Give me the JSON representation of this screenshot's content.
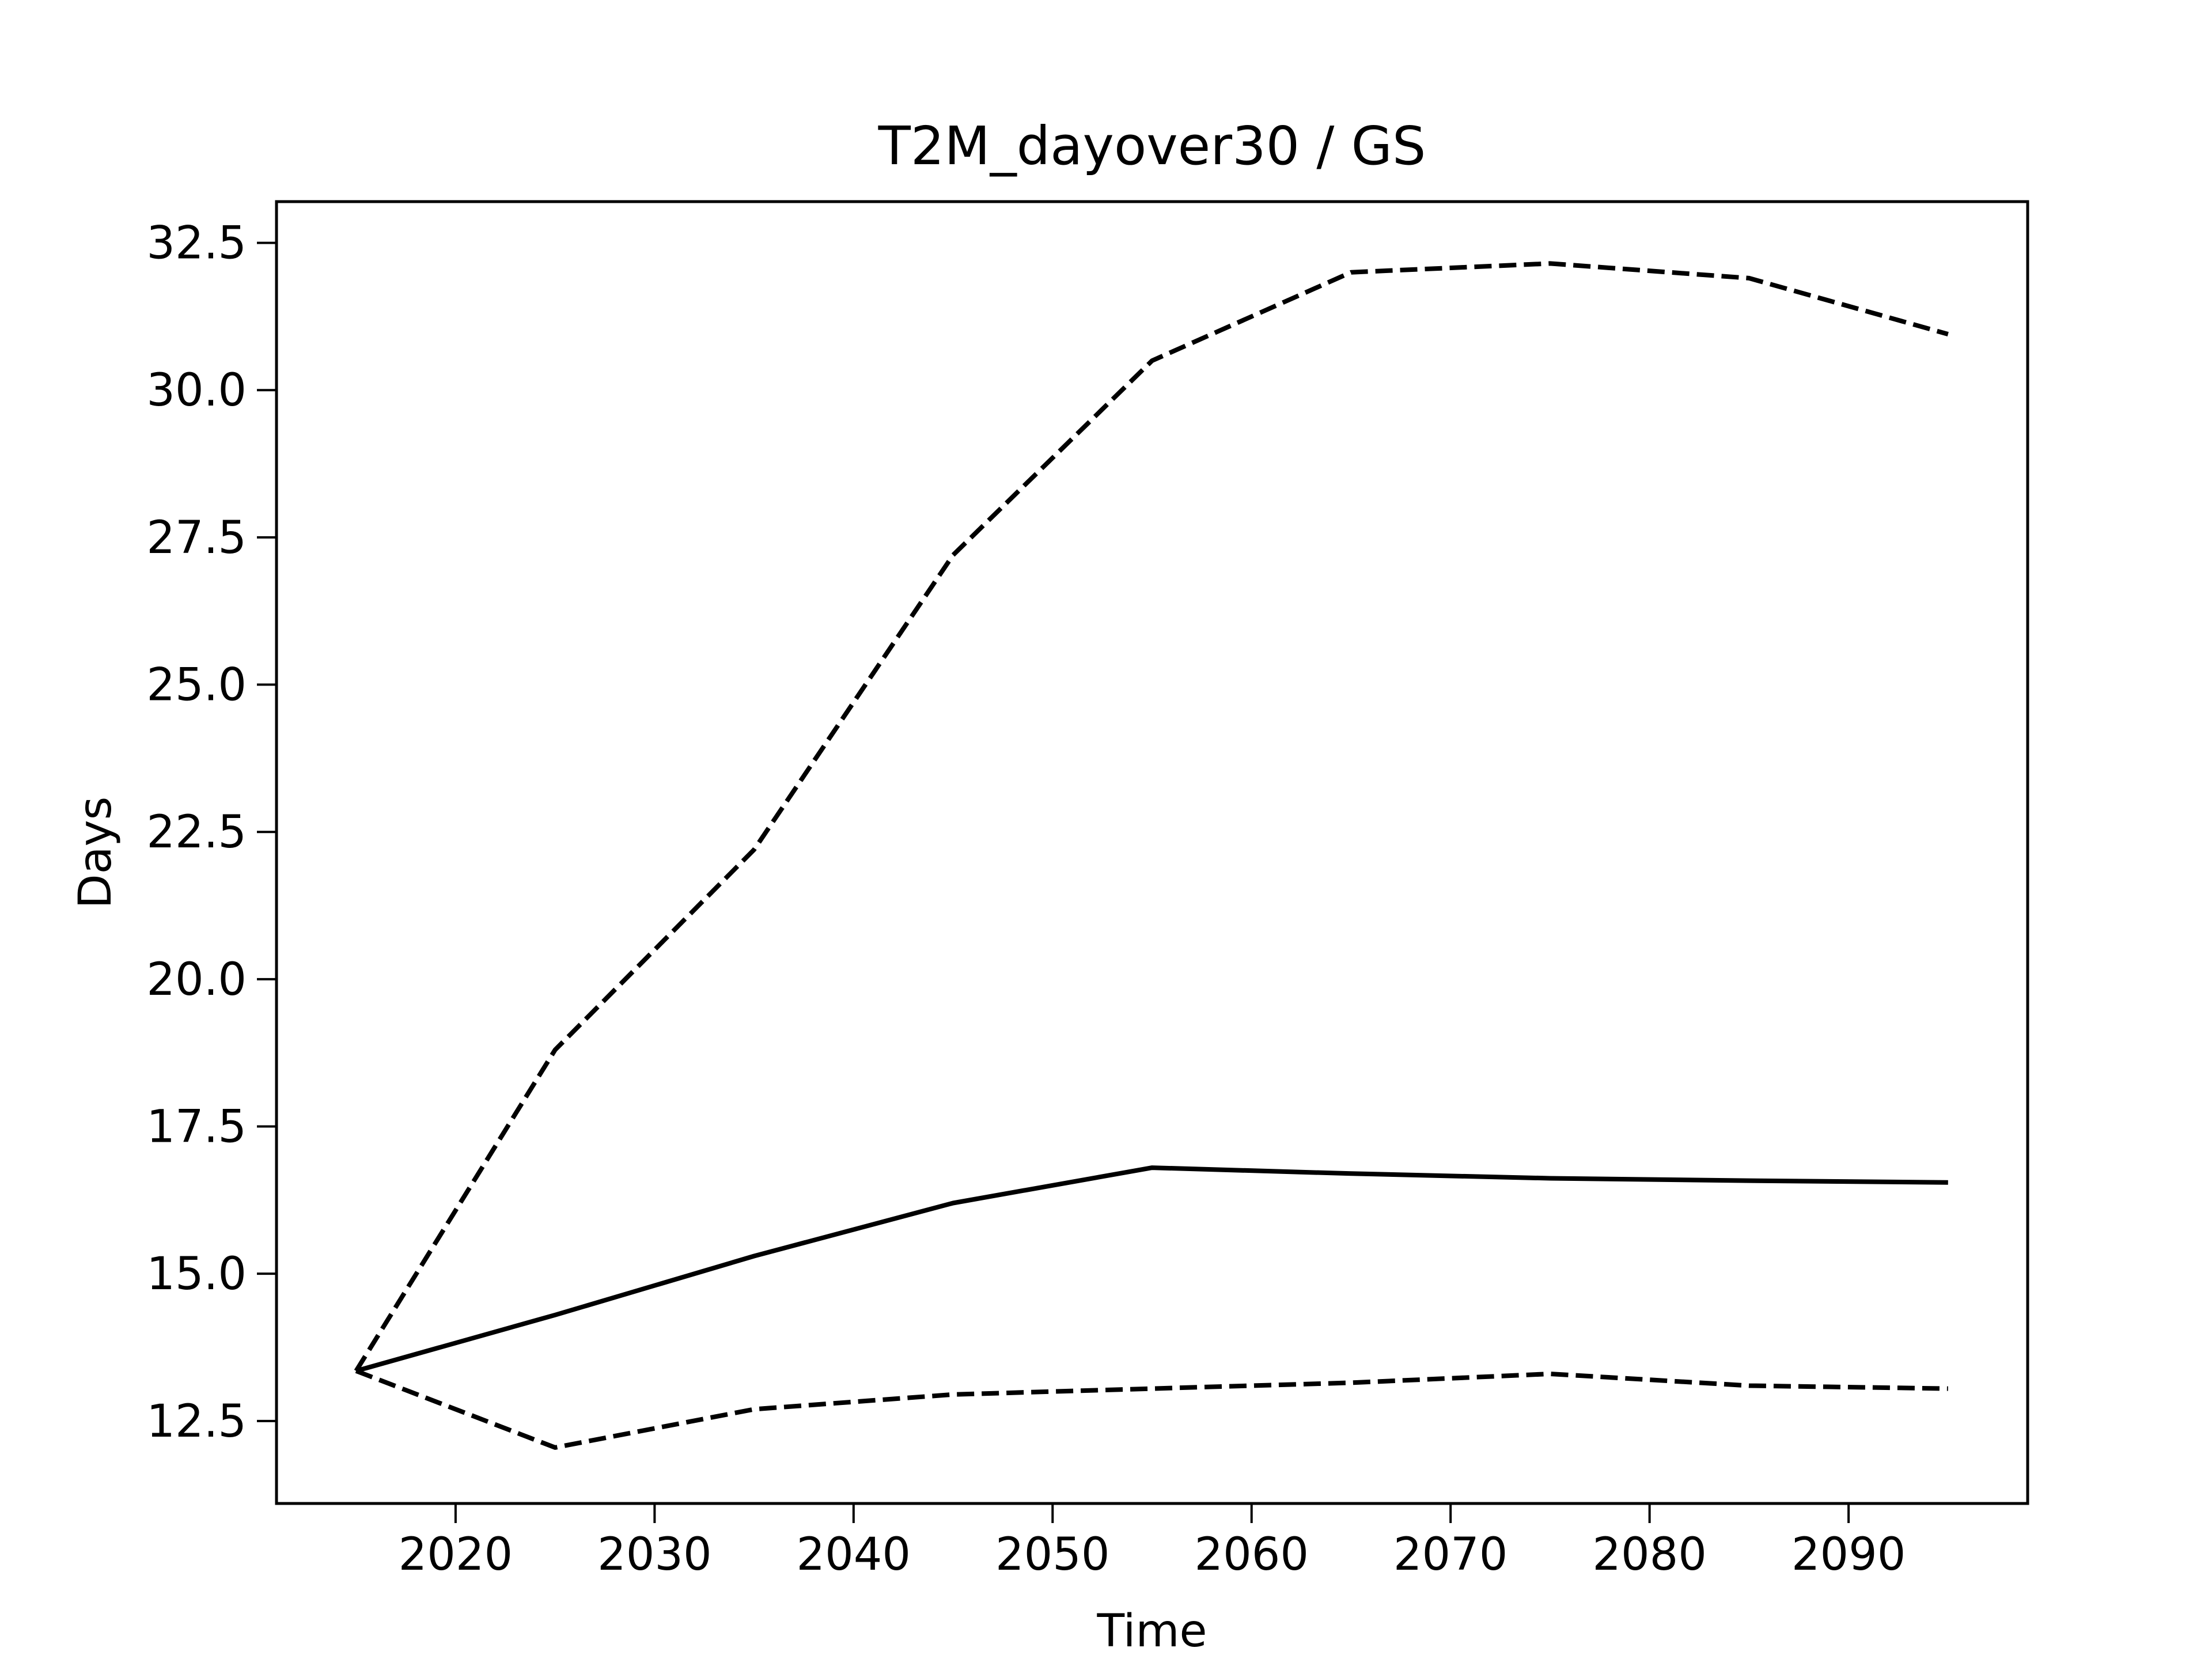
{
  "chart_data": {
    "type": "line",
    "title": "T2M_dayover30 / GS",
    "xlabel": "Time",
    "ylabel": "Days",
    "xlim": [
      2011,
      2099
    ],
    "ylim": [
      11.1,
      33.2
    ],
    "grid": false,
    "xticks": [
      2020,
      2030,
      2040,
      2050,
      2060,
      2070,
      2080,
      2090
    ],
    "xtick_labels": [
      "2020",
      "2030",
      "2040",
      "2050",
      "2060",
      "2070",
      "2080",
      "2090"
    ],
    "yticks": [
      12.5,
      15.0,
      17.5,
      20.0,
      22.5,
      25.0,
      27.5,
      30.0,
      32.5
    ],
    "ytick_labels": [
      "12.5",
      "15.0",
      "17.5",
      "20.0",
      "22.5",
      "25.0",
      "27.5",
      "30.0",
      "32.5"
    ],
    "x": [
      2015,
      2025,
      2035,
      2045,
      2055,
      2065,
      2075,
      2085,
      2095
    ],
    "series": [
      {
        "style": "dashed",
        "color": "#000000",
        "values": [
          13.35,
          18.8,
          22.2,
          27.2,
          30.5,
          32.0,
          32.15,
          31.9,
          30.95
        ]
      },
      {
        "style": "solid",
        "color": "#000000",
        "values": [
          13.35,
          14.3,
          15.3,
          16.2,
          16.8,
          16.7,
          16.62,
          16.58,
          16.55
        ]
      },
      {
        "style": "dashed",
        "color": "#000000",
        "values": [
          13.35,
          12.05,
          12.7,
          12.95,
          13.05,
          13.15,
          13.3,
          13.1,
          13.05
        ]
      }
    ]
  }
}
